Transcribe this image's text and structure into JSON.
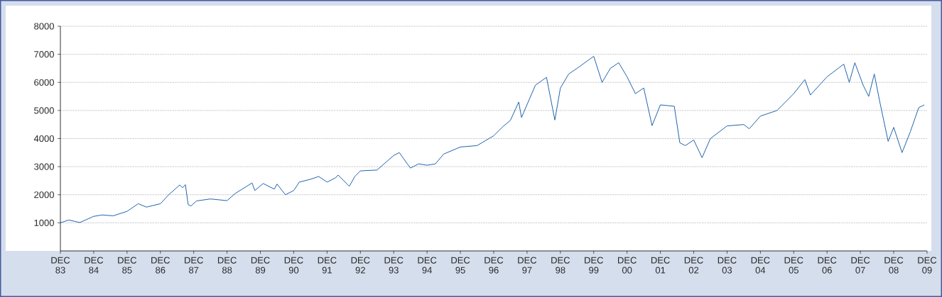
{
  "chart_data": {
    "type": "line",
    "x": [
      "1983-12",
      "1984-03",
      "1984-07",
      "1984-12",
      "1985-03",
      "1985-07",
      "1985-12",
      "1986-04",
      "1986-07",
      "1986-12",
      "1987-03",
      "1987-07",
      "1987-08",
      "1987-09",
      "1987-10",
      "1987-11",
      "1988-01",
      "1988-06",
      "1988-12",
      "1989-03",
      "1989-09",
      "1989-10",
      "1990-01",
      "1990-05",
      "1990-06",
      "1990-09",
      "1990-12",
      "1991-02",
      "1991-06",
      "1991-09",
      "1991-12",
      "1992-03",
      "1992-04",
      "1992-08",
      "1992-10",
      "1992-12",
      "1993-06",
      "1993-12",
      "1994-02",
      "1994-06",
      "1994-09",
      "1994-12",
      "1995-03",
      "1995-06",
      "1995-12",
      "1996-06",
      "1996-12",
      "1997-03",
      "1997-06",
      "1997-09",
      "1997-10",
      "1998-03",
      "1998-07",
      "1998-10",
      "1998-12",
      "1999-03",
      "1999-06",
      "1999-12",
      "2000-03",
      "2000-06",
      "2000-09",
      "2000-12",
      "2001-03",
      "2001-06",
      "2001-09",
      "2001-12",
      "2002-05",
      "2002-07",
      "2002-09",
      "2002-12",
      "2003-03",
      "2003-06",
      "2003-12",
      "2004-06",
      "2004-08",
      "2004-12",
      "2005-06",
      "2005-12",
      "2006-04",
      "2006-06",
      "2006-12",
      "2007-06",
      "2007-08",
      "2007-10",
      "2008-01",
      "2008-03",
      "2008-05",
      "2008-07",
      "2008-10",
      "2008-12",
      "2009-03",
      "2009-06",
      "2009-09",
      "2009-11"
    ],
    "values": [
      1000,
      1100,
      1010,
      1230,
      1280,
      1250,
      1410,
      1680,
      1560,
      1680,
      2000,
      2350,
      2250,
      2360,
      1650,
      1600,
      1780,
      1850,
      1790,
      2050,
      2420,
      2150,
      2400,
      2200,
      2380,
      2000,
      2150,
      2450,
      2550,
      2650,
      2450,
      2600,
      2700,
      2300,
      2650,
      2850,
      2880,
      3400,
      3500,
      2950,
      3100,
      3050,
      3100,
      3450,
      3700,
      3750,
      4100,
      4400,
      4650,
      5300,
      4750,
      5900,
      6180,
      4660,
      5800,
      6300,
      6500,
      6930,
      6000,
      6500,
      6700,
      6200,
      5600,
      5800,
      4460,
      5200,
      5150,
      3850,
      3750,
      3950,
      3320,
      4000,
      4450,
      4500,
      4350,
      4800,
      5000,
      5600,
      6100,
      5550,
      6200,
      6650,
      6000,
      6700,
      5900,
      5500,
      6300,
      5300,
      3900,
      4400,
      3500,
      4250,
      5100,
      5200
    ],
    "color": "#1f63ad",
    "xlim": [
      "1983-12",
      "2009-12"
    ],
    "xticks": [
      {
        "value": "1983-12",
        "label": "DEC 83"
      },
      {
        "value": "1984-12",
        "label": "DEC 84"
      },
      {
        "value": "1985-12",
        "label": "DEC 85"
      },
      {
        "value": "1986-12",
        "label": "DEC 86"
      },
      {
        "value": "1987-12",
        "label": "DEC 87"
      },
      {
        "value": "1988-12",
        "label": "DEC 88"
      },
      {
        "value": "1989-12",
        "label": "DEC 89"
      },
      {
        "value": "1990-12",
        "label": "DEC 90"
      },
      {
        "value": "1991-12",
        "label": "DEC 91"
      },
      {
        "value": "1992-12",
        "label": "DEC 92"
      },
      {
        "value": "1993-12",
        "label": "DEC 93"
      },
      {
        "value": "1994-12",
        "label": "DEC 94"
      },
      {
        "value": "1995-12",
        "label": "DEC 95"
      },
      {
        "value": "1996-12",
        "label": "DEC 96"
      },
      {
        "value": "1997-12",
        "label": "DEC 97"
      },
      {
        "value": "1998-12",
        "label": "DEC 98"
      },
      {
        "value": "1999-12",
        "label": "DEC 99"
      },
      {
        "value": "2000-12",
        "label": "DEC 00"
      },
      {
        "value": "2001-12",
        "label": "DEC 01"
      },
      {
        "value": "2002-12",
        "label": "DEC 02"
      },
      {
        "value": "2003-12",
        "label": "DEC 03"
      },
      {
        "value": "2004-12",
        "label": "DEC 04"
      },
      {
        "value": "2005-12",
        "label": "DEC 05"
      },
      {
        "value": "2006-12",
        "label": "DEC 06"
      },
      {
        "value": "2007-12",
        "label": "DEC 07"
      },
      {
        "value": "2008-12",
        "label": "DEC 08"
      },
      {
        "value": "2009-12",
        "label": "DEC 09"
      }
    ],
    "ylim": [
      0,
      8000
    ],
    "yticks": [
      1000,
      2000,
      3000,
      4000,
      5000,
      6000,
      7000,
      8000
    ],
    "grid": "y"
  }
}
